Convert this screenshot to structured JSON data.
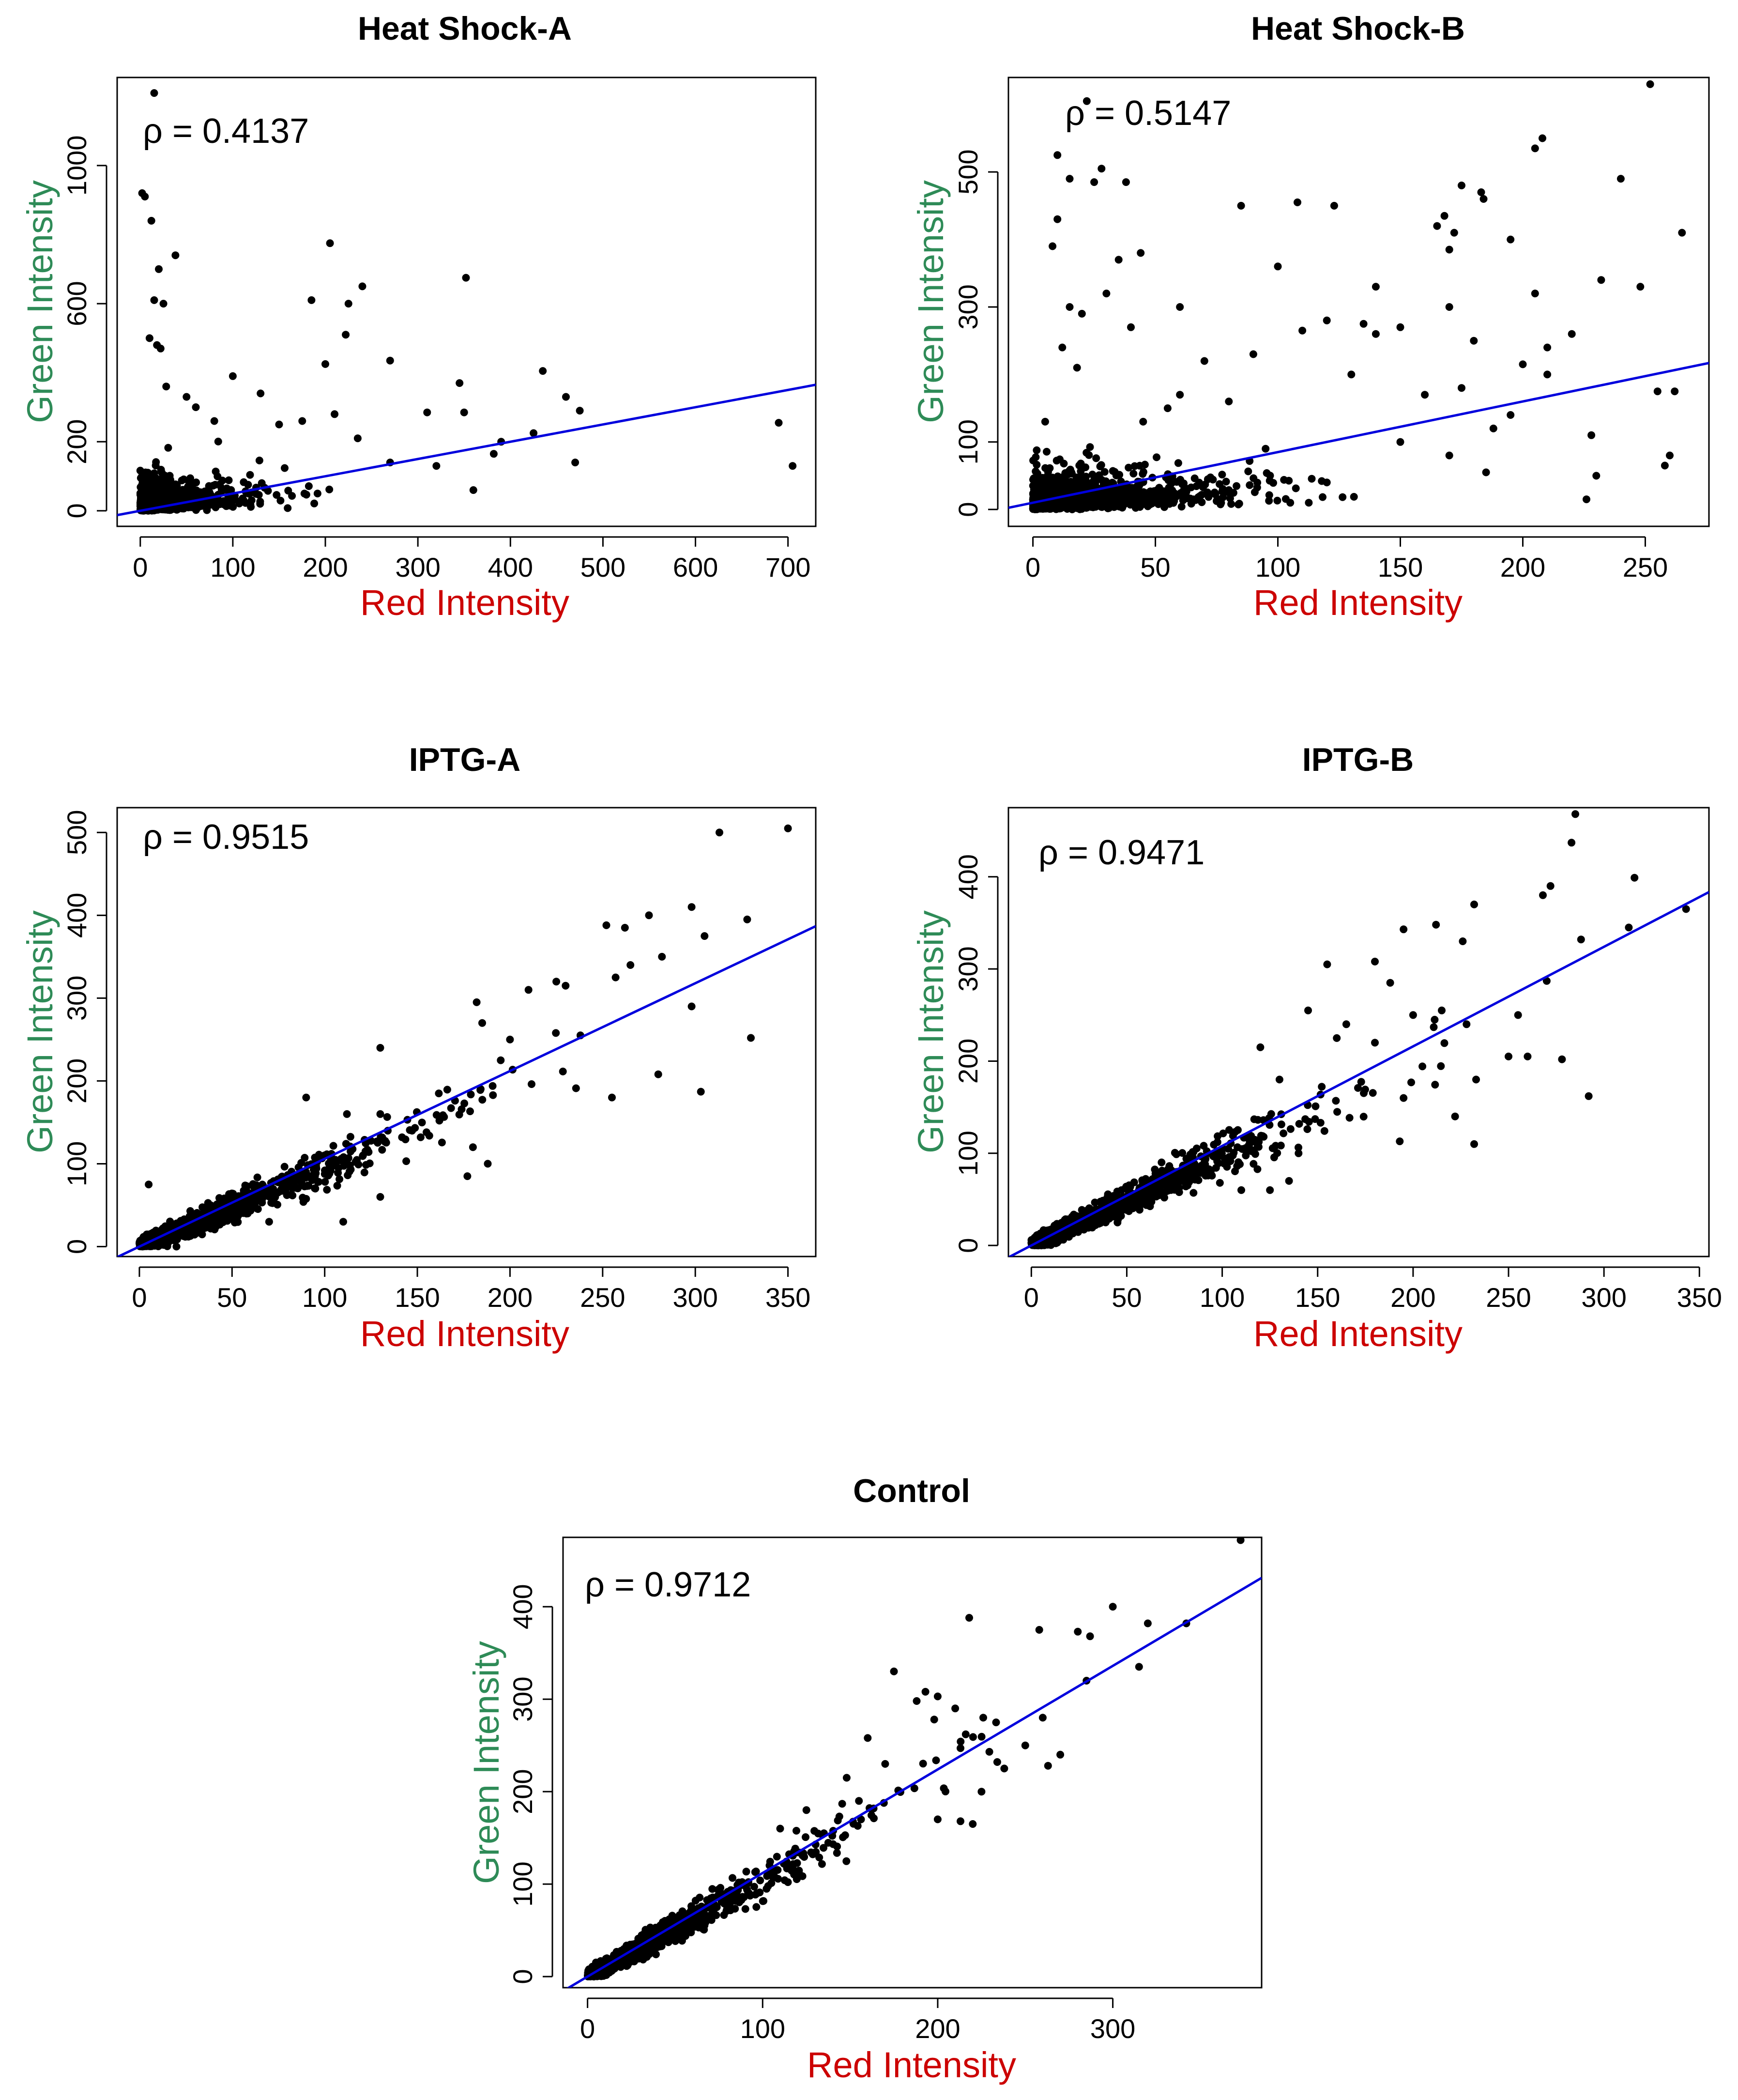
{
  "figure": {
    "point_color": "#000000",
    "fit_color": "#0000dd",
    "xlabel_color": "#cc0000",
    "ylabel_color": "#2e8b57"
  },
  "chart_data": [
    {
      "type": "scatter",
      "title": "Heat Shock-A",
      "xlabel": "Red Intensity",
      "ylabel": "Green Intensity",
      "rho_label": "ρ = 0.4137",
      "xlim": [
        -25,
        730
      ],
      "ylim": [
        -45,
        1255
      ],
      "xticks": [
        0,
        100,
        200,
        300,
        400,
        500,
        600,
        700
      ],
      "yticks": [
        0,
        200,
        600,
        1000
      ],
      "fit": {
        "intercept": 0,
        "slope": 0.5
      },
      "points": {
        "cluster": {
          "n": 1100,
          "x_scale": 30,
          "y_scale": 26,
          "x_max": 470,
          "y_max": 330,
          "follow_slope": 0.4
        },
        "outliers": [
          [
            15,
            1210
          ],
          [
            2,
            920
          ],
          [
            5,
            910
          ],
          [
            12,
            840
          ],
          [
            38,
            740
          ],
          [
            20,
            700
          ],
          [
            15,
            610
          ],
          [
            25,
            600
          ],
          [
            10,
            500
          ],
          [
            18,
            480
          ],
          [
            22,
            470
          ],
          [
            205,
            775
          ],
          [
            352,
            675
          ],
          [
            240,
            650
          ],
          [
            185,
            610
          ],
          [
            225,
            600
          ],
          [
            222,
            510
          ],
          [
            200,
            425
          ],
          [
            270,
            435
          ],
          [
            345,
            370
          ],
          [
            310,
            285
          ],
          [
            350,
            285
          ],
          [
            435,
            405
          ],
          [
            460,
            330
          ],
          [
            425,
            225
          ],
          [
            690,
            255
          ],
          [
            705,
            130
          ],
          [
            475,
            290
          ],
          [
            390,
            200
          ],
          [
            382,
            165
          ],
          [
            470,
            140
          ],
          [
            270,
            140
          ],
          [
            100,
            390
          ],
          [
            130,
            340
          ],
          [
            60,
            300
          ],
          [
            28,
            360
          ],
          [
            50,
            330
          ],
          [
            80,
            260
          ],
          [
            150,
            250
          ],
          [
            175,
            260
          ],
          [
            210,
            280
          ],
          [
            235,
            210
          ],
          [
            320,
            130
          ],
          [
            360,
            60
          ]
        ]
      }
    },
    {
      "type": "scatter",
      "title": "Heat Shock-B",
      "xlabel": "Red Intensity",
      "ylabel": "Green Intensity",
      "rho_label": "ρ = 0.5147",
      "xlim": [
        -10,
        276
      ],
      "ylim": [
        -25,
        640
      ],
      "xticks": [
        0,
        50,
        100,
        150,
        200,
        250
      ],
      "yticks": [
        0,
        100,
        300,
        500
      ],
      "fit": {
        "intercept": 10,
        "slope": 0.75
      },
      "points": {
        "cluster": {
          "n": 1200,
          "x_scale": 22,
          "y_scale": 16,
          "x_max": 160,
          "y_max": 130,
          "follow_slope": 0.3
        },
        "outliers": [
          [
            252,
            630
          ],
          [
            22,
            605
          ],
          [
            10,
            525
          ],
          [
            28,
            505
          ],
          [
            208,
            550
          ],
          [
            205,
            535
          ],
          [
            15,
            490
          ],
          [
            25,
            485
          ],
          [
            38,
            485
          ],
          [
            175,
            480
          ],
          [
            183,
            470
          ],
          [
            184,
            460
          ],
          [
            85,
            450
          ],
          [
            108,
            455
          ],
          [
            123,
            450
          ],
          [
            168,
            435
          ],
          [
            172,
            410
          ],
          [
            10,
            430
          ],
          [
            165,
            420
          ],
          [
            8,
            390
          ],
          [
            35,
            370
          ],
          [
            44,
            380
          ],
          [
            195,
            400
          ],
          [
            240,
            490
          ],
          [
            265,
            410
          ],
          [
            248,
            330
          ],
          [
            232,
            340
          ],
          [
            170,
            385
          ],
          [
            100,
            360
          ],
          [
            205,
            320
          ],
          [
            15,
            300
          ],
          [
            30,
            320
          ],
          [
            20,
            290
          ],
          [
            60,
            300
          ],
          [
            120,
            280
          ],
          [
            135,
            275
          ],
          [
            150,
            270
          ],
          [
            140,
            260
          ],
          [
            110,
            265
          ],
          [
            180,
            250
          ],
          [
            220,
            260
          ],
          [
            210,
            240
          ],
          [
            200,
            215
          ],
          [
            255,
            175
          ],
          [
            262,
            175
          ],
          [
            195,
            140
          ],
          [
            228,
            110
          ],
          [
            258,
            65
          ],
          [
            226,
            15
          ],
          [
            260,
            80
          ],
          [
            70,
            220
          ],
          [
            80,
            160
          ],
          [
            90,
            230
          ],
          [
            130,
            200
          ],
          [
            160,
            170
          ],
          [
            175,
            180
          ],
          [
            188,
            120
          ],
          [
            150,
            100
          ],
          [
            170,
            80
          ],
          [
            185,
            55
          ],
          [
            120,
            40
          ],
          [
            95,
            90
          ],
          [
            60,
            170
          ],
          [
            45,
            130
          ],
          [
            40,
            270
          ],
          [
            12,
            240
          ],
          [
            5,
            130
          ],
          [
            18,
            210
          ],
          [
            55,
            150
          ],
          [
            230,
            50
          ],
          [
            210,
            200
          ],
          [
            170,
            300
          ],
          [
            140,
            330
          ]
        ]
      }
    },
    {
      "type": "scatter",
      "title": "IPTG-A",
      "xlabel": "Red Intensity",
      "ylabel": "Green Intensity",
      "rho_label": "ρ = 0.9515",
      "xlim": [
        -12,
        365
      ],
      "ylim": [
        -12,
        530
      ],
      "xticks": [
        0,
        50,
        100,
        150,
        200,
        250,
        300,
        350
      ],
      "yticks": [
        0,
        100,
        200,
        300,
        400,
        500
      ],
      "fit": {
        "intercept": 0,
        "slope": 1.06
      },
      "points": {
        "cluster": {
          "n": 1100,
          "x_scale": 40,
          "y_scale": 0,
          "x_max": 260,
          "y_max": 420,
          "follow_slope": 0.95,
          "spread": 0.12,
          "spread_abs": 6
        },
        "outliers": [
          [
            350,
            505
          ],
          [
            313,
            500
          ],
          [
            328,
            395
          ],
          [
            298,
            410
          ],
          [
            305,
            375
          ],
          [
            275,
            400
          ],
          [
            252,
            388
          ],
          [
            262,
            385
          ],
          [
            265,
            340
          ],
          [
            257,
            325
          ],
          [
            282,
            350
          ],
          [
            298,
            290
          ],
          [
            303,
            187
          ],
          [
            280,
            208
          ],
          [
            255,
            180
          ],
          [
            238,
            255
          ],
          [
            225,
            320
          ],
          [
            230,
            315
          ],
          [
            210,
            310
          ],
          [
            200,
            250
          ],
          [
            195,
            225
          ],
          [
            182,
            295
          ],
          [
            185,
            270
          ],
          [
            180,
            120
          ],
          [
            177,
            85
          ],
          [
            188,
            100
          ],
          [
            130,
            240
          ],
          [
            130,
            160
          ],
          [
            130,
            60
          ],
          [
            122,
            115
          ],
          [
            112,
            160
          ],
          [
            110,
            30
          ],
          [
            90,
            180
          ],
          [
            70,
            30
          ],
          [
            5,
            75
          ],
          [
            20,
            0
          ],
          [
            330,
            252
          ]
        ]
      }
    },
    {
      "type": "scatter",
      "title": "IPTG-B",
      "xlabel": "Red Intensity",
      "ylabel": "Green Intensity",
      "rho_label": "ρ = 0.9471",
      "xlim": [
        -12,
        355
      ],
      "ylim": [
        -12,
        475
      ],
      "xticks": [
        0,
        50,
        100,
        150,
        200,
        250,
        300,
        350
      ],
      "yticks": [
        0,
        100,
        200,
        300,
        400
      ],
      "fit": {
        "intercept": 0,
        "slope": 1.08
      },
      "points": {
        "cluster": {
          "n": 1100,
          "x_scale": 38,
          "y_scale": 0,
          "x_max": 250,
          "y_max": 380,
          "follow_slope": 0.97,
          "spread": 0.13,
          "spread_abs": 5
        },
        "outliers": [
          [
            285,
            468
          ],
          [
            283,
            437
          ],
          [
            316,
            399
          ],
          [
            272,
            390
          ],
          [
            268,
            380
          ],
          [
            343,
            365
          ],
          [
            313,
            345
          ],
          [
            288,
            332
          ],
          [
            270,
            287
          ],
          [
            255,
            250
          ],
          [
            260,
            205
          ],
          [
            250,
            205
          ],
          [
            278,
            202
          ],
          [
            292,
            162
          ],
          [
            232,
            370
          ],
          [
            212,
            348
          ],
          [
            226,
            330
          ],
          [
            195,
            343
          ],
          [
            180,
            308
          ],
          [
            188,
            285
          ],
          [
            200,
            250
          ],
          [
            215,
            255
          ],
          [
            228,
            240
          ],
          [
            233,
            180
          ],
          [
            232,
            110
          ],
          [
            222,
            140
          ],
          [
            195,
            160
          ],
          [
            193,
            113
          ],
          [
            180,
            220
          ],
          [
            165,
            240
          ],
          [
            160,
            225
          ],
          [
            140,
            100
          ],
          [
            135,
            70
          ],
          [
            125,
            60
          ],
          [
            155,
            305
          ],
          [
            145,
            255
          ],
          [
            120,
            215
          ],
          [
            110,
            60
          ],
          [
            130,
            180
          ]
        ]
      }
    },
    {
      "type": "scatter",
      "title": "Control",
      "xlabel": "Red Intensity",
      "ylabel": "Green Intensity",
      "rho_label": "ρ = 0.9712",
      "xlim": [
        -14,
        385
      ],
      "ylim": [
        -12,
        475
      ],
      "xticks": [
        0,
        100,
        200,
        300
      ],
      "yticks": [
        0,
        100,
        200,
        300,
        400
      ],
      "fit": {
        "intercept": 0,
        "slope": 1.12
      },
      "points": {
        "cluster": {
          "n": 1000,
          "x_scale": 40,
          "y_scale": 0,
          "x_max": 240,
          "y_max": 390,
          "follow_slope": 1.05,
          "spread": 0.1,
          "spread_abs": 5
        },
        "outliers": [
          [
            373,
            472
          ],
          [
            300,
            400
          ],
          [
            342,
            382
          ],
          [
            320,
            382
          ],
          [
            280,
            373
          ],
          [
            258,
            375
          ],
          [
            287,
            368
          ],
          [
            218,
            388
          ],
          [
            193,
            308
          ],
          [
            188,
            298
          ],
          [
            200,
            303
          ],
          [
            210,
            290
          ],
          [
            198,
            278
          ],
          [
            226,
            280
          ],
          [
            216,
            262
          ],
          [
            213,
            247
          ],
          [
            250,
            250
          ],
          [
            260,
            280
          ],
          [
            263,
            228
          ],
          [
            270,
            240
          ],
          [
            234,
            232
          ],
          [
            238,
            225
          ],
          [
            225,
            200
          ],
          [
            220,
            165
          ],
          [
            213,
            168
          ],
          [
            200,
            170
          ],
          [
            175,
            330
          ],
          [
            160,
            258
          ],
          [
            155,
            190
          ],
          [
            148,
            215
          ],
          [
            125,
            180
          ],
          [
            110,
            160
          ],
          [
            285,
            320
          ],
          [
            315,
            335
          ],
          [
            170,
            230
          ],
          [
            135,
            155
          ]
        ]
      }
    }
  ]
}
